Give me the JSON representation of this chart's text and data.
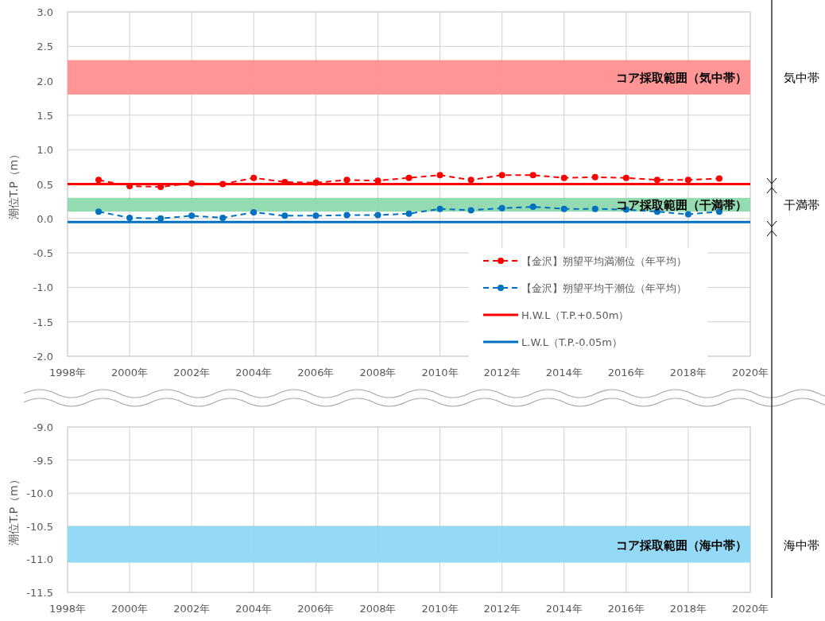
{
  "chart_data": [
    {
      "type": "line",
      "x": [
        1999,
        2000,
        2001,
        2002,
        2003,
        2004,
        2005,
        2006,
        2007,
        2008,
        2009,
        2010,
        2011,
        2012,
        2013,
        2014,
        2015,
        2016,
        2017,
        2018,
        2019
      ],
      "series": [
        {
          "name": "【金沢】朔望平均満潮位（年平均）",
          "color": "#ff0000",
          "values": [
            0.56,
            0.47,
            0.46,
            0.51,
            0.5,
            0.59,
            0.53,
            0.52,
            0.56,
            0.55,
            0.59,
            0.63,
            0.56,
            0.63,
            0.63,
            0.59,
            0.6,
            0.59,
            0.56,
            0.56,
            0.58
          ]
        },
        {
          "name": "【金沢】朔望平均干潮位（年平均）",
          "color": "#0070c0",
          "values": [
            0.1,
            0.01,
            0.0,
            0.04,
            0.01,
            0.09,
            0.04,
            0.04,
            0.05,
            0.05,
            0.07,
            0.14,
            0.12,
            0.15,
            0.17,
            0.14,
            0.14,
            0.13,
            0.1,
            0.06,
            0.1
          ]
        }
      ],
      "marker": "circle",
      "line_style": "dashed",
      "ref_lines": [
        {
          "axis": "y",
          "value": 0.5,
          "label": "H.W.L（T.P.+0.50m）",
          "color": "#ff0000"
        },
        {
          "axis": "y",
          "value": -0.05,
          "label": "L.W.L（T.P.-0.05m）",
          "color": "#0070c0"
        }
      ],
      "bands": [
        {
          "axis": "y",
          "from": 1.8,
          "to": 2.3,
          "label": "コア採取範囲（気中帯）",
          "color": "#ff8f8f"
        },
        {
          "axis": "y",
          "from": 0.1,
          "to": 0.3,
          "label": "コア採取範囲（干満帯）",
          "color": "#8ed9ad"
        }
      ],
      "ylabel": "潮位T.P（m）",
      "annotations": [
        "気中帯",
        "干満帯"
      ],
      "xlim": [
        1998,
        2020
      ],
      "xticks": [
        {
          "value": 1998,
          "label": "1998年"
        },
        {
          "value": 2000,
          "label": "2000年"
        },
        {
          "value": 2002,
          "label": "2002年"
        },
        {
          "value": 2004,
          "label": "2004年"
        },
        {
          "value": 2006,
          "label": "2006年"
        },
        {
          "value": 2008,
          "label": "2008年"
        },
        {
          "value": 2010,
          "label": "2010年"
        },
        {
          "value": 2012,
          "label": "2012年"
        },
        {
          "value": 2014,
          "label": "2014年"
        },
        {
          "value": 2016,
          "label": "2016年"
        },
        {
          "value": 2018,
          "label": "2018年"
        },
        {
          "value": 2020,
          "label": "2020年"
        }
      ],
      "ylim": [
        -2,
        3
      ],
      "yticks": [
        {
          "value": -2,
          "label": "-2.0"
        },
        {
          "value": -1.5,
          "label": "-1.5"
        },
        {
          "value": -1,
          "label": "-1.0"
        },
        {
          "value": -0.5,
          "label": "-0.5"
        },
        {
          "value": 0,
          "label": "0.0"
        },
        {
          "value": 0.5,
          "label": "0.5"
        },
        {
          "value": 1,
          "label": "1.0"
        },
        {
          "value": 1.5,
          "label": "1.5"
        },
        {
          "value": 2,
          "label": "2.0"
        },
        {
          "value": 2.5,
          "label": "2.5"
        },
        {
          "value": 3,
          "label": "3.0"
        }
      ],
      "grid": true,
      "legend": "bottom right"
    },
    {
      "type": "line",
      "bands": [
        {
          "axis": "y",
          "from": -10.5,
          "to": -11.05,
          "label": "コア採取範囲（海中帯）",
          "color": "#8ed8f6"
        }
      ],
      "ylabel": "潮位T.P（m）",
      "annotations": [
        "海中帯"
      ],
      "xlim": [
        1998,
        2020
      ],
      "xticks": [
        {
          "value": 1998,
          "label": "1998年"
        },
        {
          "value": 2000,
          "label": "2000年"
        },
        {
          "value": 2002,
          "label": "2002年"
        },
        {
          "value": 2004,
          "label": "2004年"
        },
        {
          "value": 2006,
          "label": "2006年"
        },
        {
          "value": 2008,
          "label": "2008年"
        },
        {
          "value": 2010,
          "label": "2010年"
        },
        {
          "value": 2012,
          "label": "2012年"
        },
        {
          "value": 2014,
          "label": "2014年"
        },
        {
          "value": 2016,
          "label": "2016年"
        },
        {
          "value": 2018,
          "label": "2018年"
        },
        {
          "value": 2020,
          "label": "2020年"
        }
      ],
      "ylim": [
        -11.5,
        -9
      ],
      "yticks": [
        {
          "value": -11.5,
          "label": "-11.5"
        },
        {
          "value": -11,
          "label": "-11.0"
        },
        {
          "value": -10.5,
          "label": "-10.5"
        },
        {
          "value": -10,
          "label": "-10.0"
        },
        {
          "value": -9.5,
          "label": "-9.5"
        },
        {
          "value": -9,
          "label": "-9.0"
        }
      ],
      "grid": true
    }
  ]
}
